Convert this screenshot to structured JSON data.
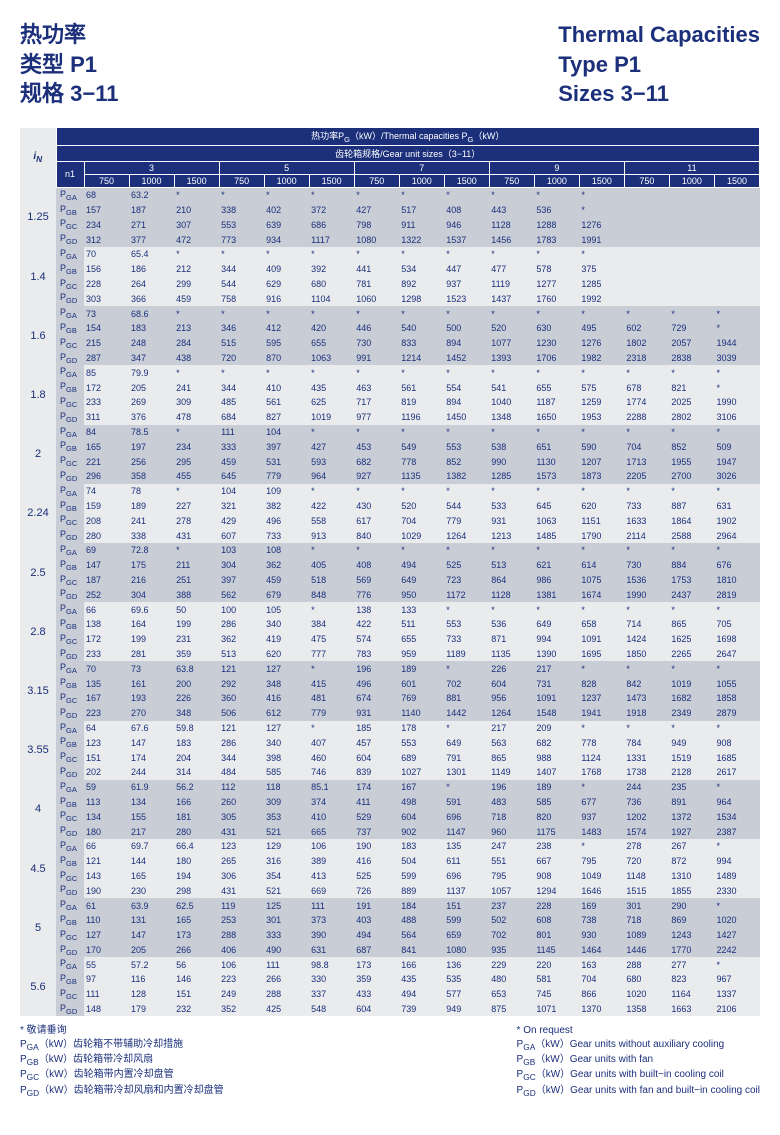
{
  "titles": {
    "left": [
      "热功率",
      "类型  P1",
      "规格  3−11"
    ],
    "right": [
      "Thermal Capacities",
      "Type  P1",
      "Sizes  3−11"
    ]
  },
  "header": {
    "top": "热功率P<sub>G</sub>（kW）/Thermal capacities P<sub>G</sub>（kW）",
    "second": "齿轮箱规格/Gear unit sizes（3−11）",
    "in": "i<sub>N</sub>",
    "n1": "n1",
    "sizes": [
      "3",
      "5",
      "7",
      "9",
      "11"
    ],
    "speeds": [
      "750",
      "1000",
      "1500"
    ]
  },
  "subs": [
    "P<sub>GA</sub>",
    "P<sub>GB</sub>",
    "P<sub>GC</sub>",
    "P<sub>GD</sub>"
  ],
  "inLabels": [
    "1.25",
    "1.4",
    "1.6",
    "1.8",
    "2",
    "2.24",
    "2.5",
    "2.8",
    "3.15",
    "3.55",
    "4",
    "4.5",
    "5",
    "5.6"
  ],
  "rows": [
    [
      [
        "68",
        "63.2",
        "*",
        "*",
        "*",
        "*",
        "*",
        "*",
        "*",
        "*",
        "*",
        "*",
        "",
        "",
        ""
      ],
      [
        "157",
        "187",
        "210",
        "338",
        "402",
        "372",
        "427",
        "517",
        "408",
        "443",
        "536",
        "*",
        "",
        "",
        ""
      ],
      [
        "234",
        "271",
        "307",
        "553",
        "639",
        "686",
        "798",
        "911",
        "946",
        "1128",
        "1288",
        "1276",
        "",
        "",
        ""
      ],
      [
        "312",
        "377",
        "472",
        "773",
        "934",
        "1117",
        "1080",
        "1322",
        "1537",
        "1456",
        "1783",
        "1991",
        "",
        "",
        ""
      ]
    ],
    [
      [
        "70",
        "65.4",
        "*",
        "*",
        "*",
        "*",
        "*",
        "*",
        "*",
        "*",
        "*",
        "*",
        "",
        "",
        ""
      ],
      [
        "156",
        "186",
        "212",
        "344",
        "409",
        "392",
        "441",
        "534",
        "447",
        "477",
        "578",
        "375",
        "",
        "",
        ""
      ],
      [
        "228",
        "264",
        "299",
        "544",
        "629",
        "680",
        "781",
        "892",
        "937",
        "1119",
        "1277",
        "1285",
        "",
        "",
        ""
      ],
      [
        "303",
        "366",
        "459",
        "758",
        "916",
        "1104",
        "1060",
        "1298",
        "1523",
        "1437",
        "1760",
        "1992",
        "",
        "",
        ""
      ]
    ],
    [
      [
        "73",
        "68.6",
        "*",
        "*",
        "*",
        "*",
        "*",
        "*",
        "*",
        "*",
        "*",
        "*",
        "*",
        "*",
        "*"
      ],
      [
        "154",
        "183",
        "213",
        "346",
        "412",
        "420",
        "446",
        "540",
        "500",
        "520",
        "630",
        "495",
        "602",
        "729",
        "*"
      ],
      [
        "215",
        "248",
        "284",
        "515",
        "595",
        "655",
        "730",
        "833",
        "894",
        "1077",
        "1230",
        "1276",
        "1802",
        "2057",
        "1944"
      ],
      [
        "287",
        "347",
        "438",
        "720",
        "870",
        "1063",
        "991",
        "1214",
        "1452",
        "1393",
        "1706",
        "1982",
        "2318",
        "2838",
        "3039"
      ]
    ],
    [
      [
        "85",
        "79.9",
        "*",
        "*",
        "*",
        "*",
        "*",
        "*",
        "*",
        "*",
        "*",
        "*",
        "*",
        "*",
        "*"
      ],
      [
        "172",
        "205",
        "241",
        "344",
        "410",
        "435",
        "463",
        "561",
        "554",
        "541",
        "655",
        "575",
        "678",
        "821",
        "*"
      ],
      [
        "233",
        "269",
        "309",
        "485",
        "561",
        "625",
        "717",
        "819",
        "894",
        "1040",
        "1187",
        "1259",
        "1774",
        "2025",
        "1990"
      ],
      [
        "311",
        "376",
        "478",
        "684",
        "827",
        "1019",
        "977",
        "1196",
        "1450",
        "1348",
        "1650",
        "1953",
        "2288",
        "2802",
        "3106"
      ]
    ],
    [
      [
        "84",
        "78.5",
        "*",
        "111",
        "104",
        "*",
        "*",
        "*",
        "*",
        "*",
        "*",
        "*",
        "*",
        "*",
        "*"
      ],
      [
        "165",
        "197",
        "234",
        "333",
        "397",
        "427",
        "453",
        "549",
        "553",
        "538",
        "651",
        "590",
        "704",
        "852",
        "509"
      ],
      [
        "221",
        "256",
        "295",
        "459",
        "531",
        "593",
        "682",
        "778",
        "852",
        "990",
        "1130",
        "1207",
        "1713",
        "1955",
        "1947"
      ],
      [
        "296",
        "358",
        "455",
        "645",
        "779",
        "964",
        "927",
        "1135",
        "1382",
        "1285",
        "1573",
        "1873",
        "2205",
        "2700",
        "3026"
      ]
    ],
    [
      [
        "74",
        "78",
        "*",
        "104",
        "109",
        "*",
        "*",
        "*",
        "*",
        "*",
        "*",
        "*",
        "*",
        "*",
        "*"
      ],
      [
        "159",
        "189",
        "227",
        "321",
        "382",
        "422",
        "430",
        "520",
        "544",
        "533",
        "645",
        "620",
        "733",
        "887",
        "631"
      ],
      [
        "208",
        "241",
        "278",
        "429",
        "496",
        "558",
        "617",
        "704",
        "779",
        "931",
        "1063",
        "1151",
        "1633",
        "1864",
        "1902"
      ],
      [
        "280",
        "338",
        "431",
        "607",
        "733",
        "913",
        "840",
        "1029",
        "1264",
        "1213",
        "1485",
        "1790",
        "2114",
        "2588",
        "2964"
      ]
    ],
    [
      [
        "69",
        "72.8",
        "*",
        "103",
        "108",
        "*",
        "*",
        "*",
        "*",
        "*",
        "*",
        "*",
        "*",
        "*",
        "*"
      ],
      [
        "147",
        "175",
        "211",
        "304",
        "362",
        "405",
        "408",
        "494",
        "525",
        "513",
        "621",
        "614",
        "730",
        "884",
        "676"
      ],
      [
        "187",
        "216",
        "251",
        "397",
        "459",
        "518",
        "569",
        "649",
        "723",
        "864",
        "986",
        "1075",
        "1536",
        "1753",
        "1810"
      ],
      [
        "252",
        "304",
        "388",
        "562",
        "679",
        "848",
        "776",
        "950",
        "1172",
        "1128",
        "1381",
        "1674",
        "1990",
        "2437",
        "2819"
      ]
    ],
    [
      [
        "66",
        "69.6",
        "50",
        "100",
        "105",
        "*",
        "138",
        "133",
        "*",
        "*",
        "*",
        "*",
        "*",
        "*",
        "*"
      ],
      [
        "138",
        "164",
        "199",
        "286",
        "340",
        "384",
        "422",
        "511",
        "553",
        "536",
        "649",
        "658",
        "714",
        "865",
        "705"
      ],
      [
        "172",
        "199",
        "231",
        "362",
        "419",
        "475",
        "574",
        "655",
        "733",
        "871",
        "994",
        "1091",
        "1424",
        "1625",
        "1698"
      ],
      [
        "233",
        "281",
        "359",
        "513",
        "620",
        "777",
        "783",
        "959",
        "1189",
        "1135",
        "1390",
        "1695",
        "1850",
        "2265",
        "2647"
      ]
    ],
    [
      [
        "70",
        "73",
        "63.8",
        "121",
        "127",
        "*",
        "196",
        "189",
        "*",
        "226",
        "217",
        "*",
        "*",
        "*",
        "*"
      ],
      [
        "135",
        "161",
        "200",
        "292",
        "348",
        "415",
        "496",
        "601",
        "702",
        "604",
        "731",
        "828",
        "842",
        "1019",
        "1055"
      ],
      [
        "167",
        "193",
        "226",
        "360",
        "416",
        "481",
        "674",
        "769",
        "881",
        "956",
        "1091",
        "1237",
        "1473",
        "1682",
        "1858"
      ],
      [
        "223",
        "270",
        "348",
        "506",
        "612",
        "779",
        "931",
        "1140",
        "1442",
        "1264",
        "1548",
        "1941",
        "1918",
        "2349",
        "2879"
      ]
    ],
    [
      [
        "64",
        "67.6",
        "59.8",
        "121",
        "127",
        "*",
        "185",
        "178",
        "*",
        "217",
        "209",
        "*",
        "*",
        "*",
        "*"
      ],
      [
        "123",
        "147",
        "183",
        "286",
        "340",
        "407",
        "457",
        "553",
        "649",
        "563",
        "682",
        "778",
        "784",
        "949",
        "908"
      ],
      [
        "151",
        "174",
        "204",
        "344",
        "398",
        "460",
        "604",
        "689",
        "791",
        "865",
        "988",
        "1124",
        "1331",
        "1519",
        "1685"
      ],
      [
        "202",
        "244",
        "314",
        "484",
        "585",
        "746",
        "839",
        "1027",
        "1301",
        "1149",
        "1407",
        "1768",
        "1738",
        "2128",
        "2617"
      ]
    ],
    [
      [
        "59",
        "61.9",
        "56.2",
        "112",
        "118",
        "85.1",
        "174",
        "167",
        "*",
        "196",
        "189",
        "*",
        "244",
        "235",
        "*"
      ],
      [
        "113",
        "134",
        "166",
        "260",
        "309",
        "374",
        "411",
        "498",
        "591",
        "483",
        "585",
        "677",
        "736",
        "891",
        "964"
      ],
      [
        "134",
        "155",
        "181",
        "305",
        "353",
        "410",
        "529",
        "604",
        "696",
        "718",
        "820",
        "937",
        "1202",
        "1372",
        "1534"
      ],
      [
        "180",
        "217",
        "280",
        "431",
        "521",
        "665",
        "737",
        "902",
        "1147",
        "960",
        "1175",
        "1483",
        "1574",
        "1927",
        "2387"
      ]
    ],
    [
      [
        "66",
        "69.7",
        "66.4",
        "123",
        "129",
        "106",
        "190",
        "183",
        "135",
        "247",
        "238",
        "*",
        "278",
        "267",
        "*"
      ],
      [
        "121",
        "144",
        "180",
        "265",
        "316",
        "389",
        "416",
        "504",
        "611",
        "551",
        "667",
        "795",
        "720",
        "872",
        "994"
      ],
      [
        "143",
        "165",
        "194",
        "306",
        "354",
        "413",
        "525",
        "599",
        "696",
        "795",
        "908",
        "1049",
        "1148",
        "1310",
        "1489"
      ],
      [
        "190",
        "230",
        "298",
        "431",
        "521",
        "669",
        "726",
        "889",
        "1137",
        "1057",
        "1294",
        "1646",
        "1515",
        "1855",
        "2330"
      ]
    ],
    [
      [
        "61",
        "63.9",
        "62.5",
        "119",
        "125",
        "111",
        "191",
        "184",
        "151",
        "237",
        "228",
        "169",
        "301",
        "290",
        "*"
      ],
      [
        "110",
        "131",
        "165",
        "253",
        "301",
        "373",
        "403",
        "488",
        "599",
        "502",
        "608",
        "738",
        "718",
        "869",
        "1020"
      ],
      [
        "127",
        "147",
        "173",
        "288",
        "333",
        "390",
        "494",
        "564",
        "659",
        "702",
        "801",
        "930",
        "1089",
        "1243",
        "1427"
      ],
      [
        "170",
        "205",
        "266",
        "406",
        "490",
        "631",
        "687",
        "841",
        "1080",
        "935",
        "1145",
        "1464",
        "1446",
        "1770",
        "2242"
      ]
    ],
    [
      [
        "55",
        "57.2",
        "56",
        "106",
        "111",
        "98.8",
        "173",
        "166",
        "136",
        "229",
        "220",
        "163",
        "288",
        "277",
        "*"
      ],
      [
        "97",
        "116",
        "146",
        "223",
        "266",
        "330",
        "359",
        "435",
        "535",
        "480",
        "581",
        "704",
        "680",
        "823",
        "967"
      ],
      [
        "111",
        "128",
        "151",
        "249",
        "288",
        "337",
        "433",
        "494",
        "577",
        "653",
        "745",
        "866",
        "1020",
        "1164",
        "1337"
      ],
      [
        "148",
        "179",
        "232",
        "352",
        "425",
        "548",
        "604",
        "739",
        "949",
        "875",
        "1071",
        "1370",
        "1358",
        "1663",
        "2106"
      ]
    ]
  ],
  "footer": {
    "left": [
      "* 敬请垂询",
      "P<sub>GA</sub>（kW）齿轮箱不带辅助冷却措施",
      "P<sub>GB</sub>（kW）齿轮箱带冷却风扇",
      "P<sub>GC</sub>（kW）齿轮箱带内置冷却盘管",
      "P<sub>GD</sub>（kW）齿轮箱带冷却风扇和内置冷却盘管"
    ],
    "right": [
      "* On request",
      "P<sub>GA</sub>（kW）Gear units without auxiliary cooling",
      "P<sub>GB</sub>（kW）Gear units with fan",
      "P<sub>GC</sub>（kW）Gear units with built−in cooling coil",
      "P<sub>GD</sub>（kW）Gear units with fan and built−in cooling coil"
    ]
  },
  "colors": {
    "navy": "#1b2f7b",
    "lightA": "#c8cdd6",
    "lightB": "#e9ebed"
  }
}
